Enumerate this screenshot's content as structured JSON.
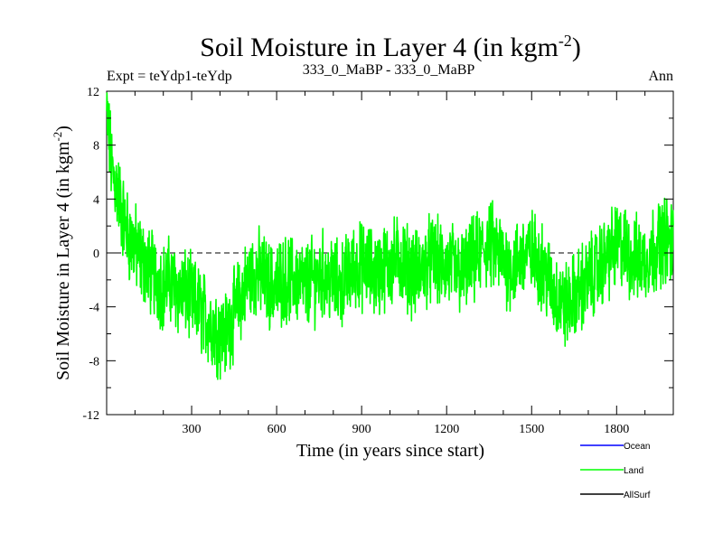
{
  "chart_data": {
    "type": "line",
    "title": "Soil Moisture in Layer 4 (in kgm",
    "title_sup": "-2",
    "title_close": ")",
    "subtitle_left": "Expt = teYdp1-teYdp",
    "subtitle_center": "333_0_MaBP - 333_0_MaBP",
    "subtitle_right": "Ann",
    "xlabel": "Time (in years since start)",
    "ylabel": "Soil Moisture in Layer 4 (in kgm",
    "ylabel_sup": "-2",
    "ylabel_close": ")",
    "xlim": [
      0,
      2000
    ],
    "ylim": [
      -12,
      12
    ],
    "xticks": [
      300,
      600,
      900,
      1200,
      1500,
      1800
    ],
    "yticks": [
      12,
      8,
      4,
      0,
      -4,
      -8,
      -12
    ],
    "reference_line": 0,
    "legend": [
      {
        "name": "Ocean",
        "color": "#0000ff"
      },
      {
        "name": "Land",
        "color": "#00ff00"
      },
      {
        "name": "AllSurf",
        "color": "#000000"
      }
    ],
    "series": [
      {
        "name": "Land",
        "color": "#00ff00",
        "x_start": 0,
        "x_step": 20,
        "values": [
          10.2,
          6.0,
          4.5,
          2.5,
          1.0,
          0.5,
          -0.5,
          -1.0,
          -1.5,
          -2.0,
          -2.5,
          -2.0,
          -2.5,
          -3.0,
          -3.0,
          -3.5,
          -4.0,
          -4.5,
          -5.0,
          -5.5,
          -6.0,
          -6.0,
          -5.0,
          -4.0,
          -3.0,
          -2.0,
          -1.5,
          -1.5,
          -2.0,
          -2.5,
          -2.5,
          -2.0,
          -2.0,
          -2.0,
          -2.0,
          -2.5,
          -2.0,
          -2.0,
          -1.5,
          -2.0,
          -2.0,
          -2.5,
          -2.0,
          -1.5,
          -1.0,
          -1.0,
          -1.0,
          -1.5,
          -1.5,
          -1.0,
          -1.0,
          -0.5,
          -0.5,
          -1.0,
          -1.5,
          -1.5,
          -1.0,
          -0.5,
          -0.5,
          -1.0,
          -1.0,
          -1.0,
          -1.5,
          -1.5,
          -1.0,
          -0.5,
          0.0,
          0.5,
          0.5,
          0.0,
          -0.5,
          -1.0,
          -1.0,
          -0.5,
          0.0,
          0.0,
          -0.5,
          -1.0,
          -2.0,
          -3.0,
          -3.5,
          -4.0,
          -3.5,
          -3.0,
          -2.5,
          -2.0,
          -1.5,
          -1.0,
          -0.5,
          0.0,
          0.5,
          0.5,
          0.0,
          -0.5,
          -0.5,
          -0.5,
          0.0,
          0.5,
          1.0,
          1.0,
          0.5
        ]
      }
    ]
  }
}
